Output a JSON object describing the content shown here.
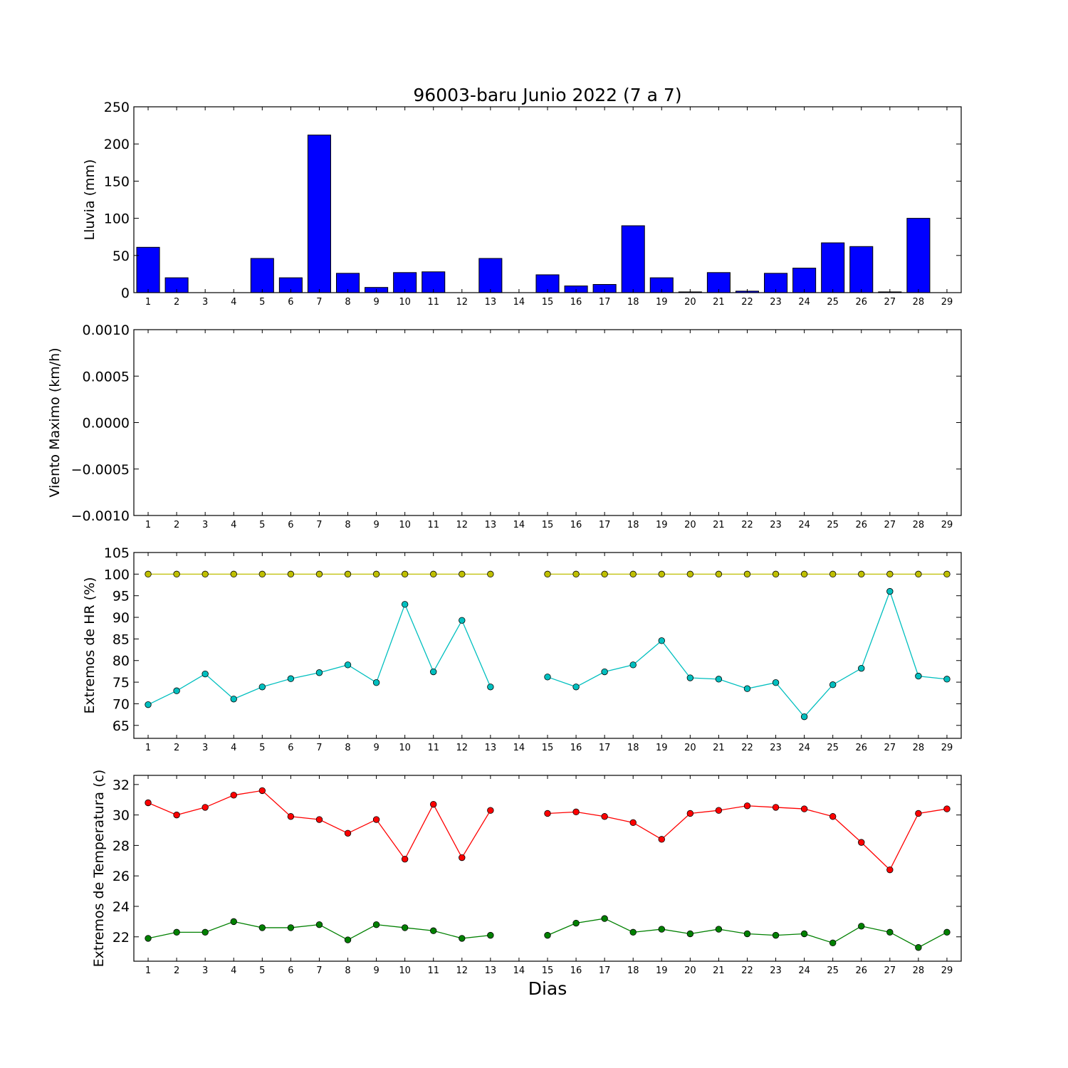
{
  "chart_data": {
    "title": "96003-baru Junio 2022  (7 a 7)",
    "xlabel": "Dias",
    "days": [
      1,
      2,
      3,
      4,
      5,
      6,
      7,
      8,
      9,
      10,
      11,
      12,
      13,
      14,
      15,
      16,
      17,
      18,
      19,
      20,
      21,
      22,
      23,
      24,
      25,
      26,
      27,
      28,
      29
    ],
    "panels": [
      {
        "id": "lluvia",
        "type": "bar",
        "ylabel": "Lluvia (mm)",
        "ylim": [
          0,
          250
        ],
        "yticks": [
          "0",
          "50",
          "100",
          "150",
          "200",
          "250"
        ],
        "series": [
          {
            "color": "#0000ff",
            "values": [
              61,
              20,
              0,
              0,
              46,
              20,
              212,
              26,
              7,
              27,
              28,
              0,
              46,
              0,
              24,
              9,
              11,
              90,
              20,
              1,
              27,
              2,
              26,
              33,
              67,
              62,
              1,
              100,
              0
            ]
          }
        ]
      },
      {
        "id": "viento",
        "type": "line",
        "ylabel": "Viento Maximo (km/h)",
        "ylim": [
          -0.001,
          0.001
        ],
        "yticks": [
          "−0.0010",
          "−0.0005",
          "0.0000",
          "0.0005",
          "0.0010"
        ],
        "series": []
      },
      {
        "id": "hr",
        "type": "line",
        "ylabel": "Extremos de HR (%)",
        "ylim": [
          62,
          105
        ],
        "yticks": [
          "65",
          "70",
          "75",
          "80",
          "85",
          "90",
          "95",
          "100",
          "105"
        ],
        "series": [
          {
            "color": "#bfbf00",
            "values": [
              100,
              100,
              100,
              100,
              100,
              100,
              100,
              100,
              100,
              100,
              100,
              100,
              100,
              null,
              100,
              100,
              100,
              100,
              100,
              100,
              100,
              100,
              100,
              100,
              100,
              100,
              100,
              100,
              100
            ]
          },
          {
            "color": "#00bfbf",
            "values": [
              69.8,
              73,
              76.9,
              71.1,
              73.9,
              75.8,
              77.2,
              79,
              74.9,
              93,
              77.4,
              89.3,
              73.9,
              null,
              76.2,
              73.9,
              77.4,
              79,
              84.6,
              76,
              75.7,
              73.5,
              74.9,
              67,
              74.4,
              78.2,
              96,
              76.4,
              75.7
            ]
          }
        ]
      },
      {
        "id": "temp",
        "type": "line",
        "ylabel": "Extremos de Temperatura (c)",
        "ylim": [
          20.4,
          32.6
        ],
        "yticks": [
          "22",
          "24",
          "26",
          "28",
          "30",
          "32"
        ],
        "series": [
          {
            "color": "#ff0000",
            "values": [
              30.8,
              30,
              30.5,
              31.3,
              31.6,
              29.9,
              29.7,
              28.8,
              29.7,
              27.1,
              30.7,
              27.2,
              30.3,
              null,
              30.1,
              30.2,
              29.9,
              29.5,
              28.4,
              30.1,
              30.3,
              30.6,
              30.5,
              30.4,
              29.9,
              28.2,
              26.4,
              30.1,
              30.4
            ]
          },
          {
            "color": "#008000",
            "values": [
              21.9,
              22.3,
              22.3,
              23,
              22.6,
              22.6,
              22.8,
              21.8,
              22.8,
              22.6,
              22.4,
              21.9,
              22.1,
              null,
              22.1,
              22.9,
              23.2,
              22.3,
              22.5,
              22.2,
              22.5,
              22.2,
              22.1,
              22.2,
              21.6,
              22.7,
              22.3,
              21.3,
              22.3
            ]
          }
        ]
      }
    ]
  }
}
